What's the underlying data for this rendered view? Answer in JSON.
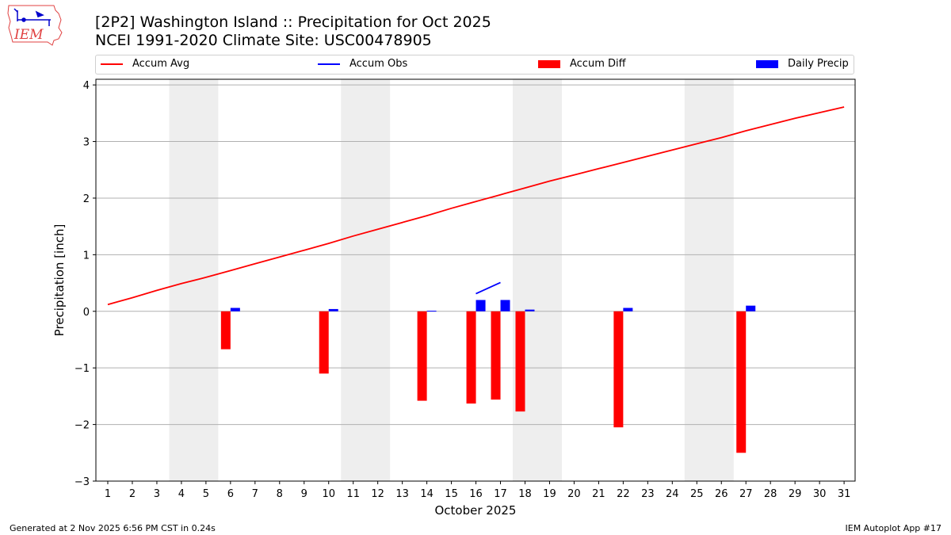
{
  "header": {
    "title_line1": "[2P2] Washington Island :: Precipitation for Oct 2025",
    "title_line2": "NCEI 1991-2020 Climate Site: USC00478905"
  },
  "logo": {
    "text": "IEM",
    "icon": "iem-iowa-logo-icon"
  },
  "legend": [
    {
      "label": "Accum Avg",
      "kind": "line",
      "color": "#ff0000"
    },
    {
      "label": "Accum Obs",
      "kind": "line",
      "color": "#0000ff"
    },
    {
      "label": "Accum Diff",
      "kind": "bar",
      "color": "#ff0000"
    },
    {
      "label": "Daily Precip",
      "kind": "bar",
      "color": "#0000ff"
    }
  ],
  "footer": {
    "left": "Generated at 2 Nov 2025 6:56 PM CST in 0.24s",
    "right": "IEM Autoplot App #17"
  },
  "chart_data": {
    "type": "bar",
    "xlabel": "October 2025",
    "ylabel": "Precipitation [inch]",
    "x": [
      1,
      2,
      3,
      4,
      5,
      6,
      7,
      8,
      9,
      10,
      11,
      12,
      13,
      14,
      15,
      16,
      17,
      18,
      19,
      20,
      21,
      22,
      23,
      24,
      25,
      26,
      27,
      28,
      29,
      30,
      31
    ],
    "ylim": [
      -3,
      4.1
    ],
    "yticks": [
      -3,
      -2,
      -1,
      0,
      1,
      2,
      3,
      4
    ],
    "ytick_labels": [
      "−3",
      "−2",
      "−1",
      "0",
      "1",
      "2",
      "3",
      "4"
    ],
    "grid": "y",
    "legend_position": "top",
    "weekend_shading": [
      [
        4,
        5
      ],
      [
        11,
        12
      ],
      [
        18,
        19
      ],
      [
        25,
        26
      ]
    ],
    "series": [
      {
        "name": "Accum Avg",
        "kind": "line",
        "color": "#ff0000",
        "values": [
          0.12,
          0.24,
          0.37,
          0.49,
          0.6,
          0.72,
          0.84,
          0.96,
          1.08,
          1.2,
          1.33,
          1.45,
          1.57,
          1.69,
          1.82,
          1.94,
          2.06,
          2.18,
          2.3,
          2.41,
          2.52,
          2.63,
          2.74,
          2.85,
          2.96,
          3.07,
          3.19,
          3.3,
          3.41,
          3.51,
          3.61
        ]
      },
      {
        "name": "Accum Obs",
        "kind": "line",
        "color": "#0000ff",
        "values": [
          null,
          null,
          null,
          null,
          null,
          null,
          null,
          null,
          null,
          null,
          null,
          null,
          null,
          null,
          null,
          0.31,
          0.51,
          null,
          null,
          null,
          null,
          null,
          null,
          null,
          null,
          null,
          null,
          null,
          null,
          null,
          null
        ]
      },
      {
        "name": "Accum Diff",
        "kind": "bar",
        "color": "#ff0000",
        "values": [
          null,
          null,
          null,
          null,
          null,
          -0.67,
          null,
          null,
          null,
          -1.1,
          null,
          null,
          null,
          -1.58,
          null,
          -1.63,
          -1.56,
          -1.77,
          null,
          null,
          null,
          -2.05,
          null,
          null,
          null,
          null,
          -2.5,
          null,
          null,
          null,
          null
        ]
      },
      {
        "name": "Daily Precip",
        "kind": "bar",
        "color": "#0000ff",
        "values": [
          null,
          null,
          null,
          null,
          null,
          0.06,
          null,
          null,
          null,
          0.04,
          null,
          null,
          null,
          0.01,
          null,
          0.2,
          0.2,
          0.03,
          null,
          null,
          null,
          0.06,
          null,
          null,
          null,
          null,
          0.1,
          null,
          null,
          null,
          null
        ]
      }
    ]
  }
}
